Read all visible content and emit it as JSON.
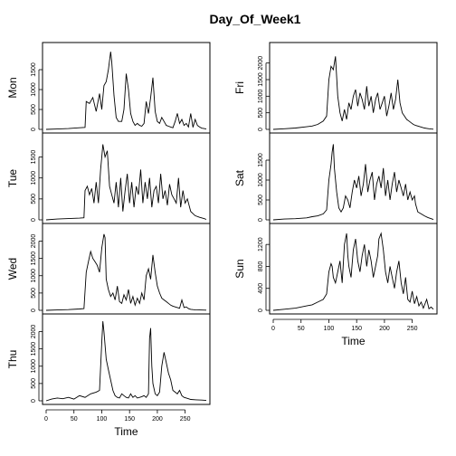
{
  "title": "Day_Of_Week1",
  "chart_data": {
    "type": "line",
    "title": "Day_Of_Week1",
    "xlabel": "Time",
    "grid": false,
    "panels": [
      {
        "name": "Mon",
        "column": 0,
        "row": 0,
        "ylim": [
          0,
          2000
        ],
        "yticks": [
          0,
          500,
          1000,
          1500
        ],
        "xlim": [
          0,
          288
        ],
        "x": [
          0,
          20,
          40,
          60,
          70,
          72,
          78,
          84,
          90,
          96,
          100,
          104,
          108,
          112,
          116,
          118,
          122,
          126,
          130,
          136,
          140,
          144,
          148,
          152,
          156,
          160,
          164,
          168,
          172,
          176,
          180,
          184,
          188,
          192,
          196,
          200,
          204,
          208,
          212,
          216,
          220,
          224,
          228,
          232,
          236,
          240,
          244,
          248,
          252,
          256,
          260,
          264,
          268,
          272,
          276,
          280,
          284,
          288
        ],
        "y": [
          0,
          10,
          20,
          40,
          50,
          700,
          650,
          800,
          450,
          900,
          500,
          1100,
          1200,
          1500,
          1950,
          1700,
          850,
          300,
          200,
          200,
          500,
          1400,
          1000,
          400,
          200,
          100,
          150,
          100,
          80,
          150,
          700,
          400,
          800,
          1300,
          450,
          200,
          150,
          300,
          200,
          100,
          80,
          60,
          40,
          200,
          400,
          150,
          250,
          100,
          150,
          60,
          400,
          50,
          250,
          100,
          60,
          30,
          20,
          10
        ]
      },
      {
        "name": "Tue",
        "column": 0,
        "row": 1,
        "ylim": [
          0,
          1900
        ],
        "yticks": [
          0,
          500,
          1000,
          1500
        ],
        "xlim": [
          0,
          288
        ],
        "x": [
          0,
          20,
          40,
          60,
          68,
          70,
          74,
          78,
          82,
          86,
          90,
          94,
          98,
          100,
          102,
          106,
          110,
          114,
          118,
          122,
          126,
          130,
          134,
          138,
          142,
          146,
          150,
          154,
          158,
          162,
          166,
          170,
          174,
          178,
          182,
          186,
          190,
          194,
          198,
          202,
          206,
          210,
          214,
          218,
          222,
          226,
          230,
          234,
          238,
          242,
          246,
          250,
          254,
          260,
          268,
          276,
          284,
          288
        ],
        "y": [
          0,
          20,
          30,
          40,
          50,
          700,
          800,
          600,
          750,
          400,
          900,
          400,
          1200,
          1500,
          1800,
          1500,
          1650,
          800,
          600,
          400,
          900,
          300,
          1000,
          200,
          700,
          1100,
          400,
          900,
          300,
          800,
          600,
          1200,
          400,
          900,
          500,
          1000,
          300,
          700,
          800,
          400,
          1100,
          500,
          700,
          350,
          850,
          600,
          500,
          400,
          1000,
          300,
          700,
          400,
          500,
          200,
          100,
          60,
          30,
          10
        ]
      },
      {
        "name": "Wed",
        "column": 0,
        "row": 2,
        "ylim": [
          0,
          2300
        ],
        "yticks": [
          0,
          500,
          1000,
          1500,
          2000
        ],
        "xlim": [
          0,
          288
        ],
        "x": [
          0,
          20,
          40,
          60,
          68,
          72,
          76,
          80,
          84,
          88,
          92,
          96,
          100,
          104,
          106,
          108,
          112,
          116,
          120,
          124,
          128,
          132,
          136,
          140,
          144,
          148,
          152,
          156,
          160,
          164,
          168,
          172,
          176,
          180,
          184,
          188,
          192,
          196,
          200,
          204,
          208,
          212,
          216,
          220,
          224,
          228,
          232,
          236,
          240,
          244,
          248,
          252,
          256,
          260,
          264,
          268,
          276,
          288
        ],
        "y": [
          0,
          10,
          20,
          40,
          50,
          1100,
          1400,
          1700,
          1500,
          1400,
          1300,
          1100,
          1800,
          2200,
          2100,
          900,
          600,
          400,
          500,
          300,
          700,
          250,
          200,
          450,
          300,
          600,
          200,
          400,
          150,
          350,
          200,
          500,
          300,
          1000,
          1200,
          900,
          1600,
          1100,
          700,
          500,
          350,
          300,
          250,
          200,
          150,
          120,
          100,
          80,
          60,
          300,
          80,
          100,
          50,
          30,
          20,
          15,
          10,
          5
        ]
      },
      {
        "name": "Thu",
        "column": 0,
        "row": 3,
        "ylim": [
          0,
          2300
        ],
        "yticks": [
          0,
          500,
          1000,
          1500,
          2000
        ],
        "xlim": [
          0,
          288
        ],
        "x": [
          0,
          10,
          20,
          30,
          40,
          50,
          60,
          70,
          80,
          90,
          96,
          100,
          102,
          104,
          108,
          112,
          116,
          120,
          124,
          128,
          132,
          136,
          140,
          144,
          148,
          152,
          156,
          160,
          164,
          168,
          172,
          176,
          180,
          184,
          186,
          188,
          190,
          192,
          196,
          200,
          204,
          208,
          212,
          216,
          220,
          224,
          228,
          232,
          236,
          240,
          244,
          248,
          252,
          256,
          260,
          270,
          280,
          288
        ],
        "y": [
          0,
          50,
          80,
          60,
          100,
          50,
          150,
          100,
          200,
          250,
          300,
          1700,
          2300,
          2000,
          1200,
          900,
          600,
          300,
          150,
          100,
          80,
          200,
          150,
          100,
          80,
          200,
          100,
          150,
          80,
          100,
          120,
          150,
          100,
          200,
          1800,
          2100,
          1000,
          500,
          200,
          150,
          250,
          1000,
          1400,
          1100,
          800,
          600,
          300,
          250,
          200,
          300,
          150,
          100,
          80,
          60,
          40,
          30,
          20,
          10
        ]
      },
      {
        "name": "Fri",
        "column": 1,
        "row": 0,
        "ylim": [
          0,
          2400
        ],
        "yticks": [
          0,
          500,
          1000,
          1500,
          2000
        ],
        "xlim": [
          0,
          288
        ],
        "x": [
          0,
          20,
          40,
          60,
          70,
          80,
          90,
          96,
          100,
          104,
          108,
          112,
          116,
          120,
          124,
          128,
          132,
          136,
          140,
          144,
          148,
          152,
          156,
          160,
          164,
          168,
          172,
          176,
          180,
          184,
          188,
          192,
          196,
          200,
          204,
          208,
          212,
          216,
          220,
          224,
          228,
          232,
          236,
          240,
          244,
          248,
          252,
          256,
          260,
          264,
          268,
          272,
          276,
          280,
          284,
          288
        ],
        "y": [
          0,
          20,
          40,
          80,
          100,
          150,
          250,
          400,
          1500,
          1900,
          1800,
          2200,
          1000,
          500,
          250,
          600,
          300,
          800,
          600,
          1000,
          1200,
          700,
          1100,
          900,
          600,
          1300,
          700,
          1000,
          500,
          900,
          1100,
          600,
          800,
          1000,
          400,
          700,
          1100,
          600,
          900,
          1500,
          800,
          500,
          400,
          300,
          250,
          200,
          150,
          120,
          100,
          80,
          60,
          40,
          30,
          20,
          10,
          5
        ]
      },
      {
        "name": "Sat",
        "column": 1,
        "row": 1,
        "ylim": [
          0,
          2000
        ],
        "yticks": [
          0,
          500,
          1000,
          1500
        ],
        "xlim": [
          0,
          288
        ],
        "x": [
          0,
          20,
          40,
          60,
          70,
          80,
          90,
          96,
          100,
          104,
          106,
          108,
          110,
          114,
          118,
          122,
          126,
          130,
          134,
          138,
          142,
          146,
          150,
          154,
          158,
          162,
          166,
          170,
          174,
          178,
          182,
          186,
          190,
          194,
          198,
          202,
          206,
          210,
          214,
          218,
          222,
          226,
          230,
          234,
          238,
          242,
          246,
          250,
          254,
          256,
          260,
          266,
          272,
          278,
          284,
          288
        ],
        "y": [
          0,
          20,
          30,
          50,
          80,
          100,
          150,
          250,
          1000,
          1400,
          1700,
          1900,
          1300,
          700,
          300,
          200,
          300,
          600,
          500,
          300,
          700,
          1000,
          800,
          1100,
          600,
          900,
          1400,
          700,
          1000,
          1200,
          500,
          900,
          1100,
          800,
          1300,
          600,
          1000,
          500,
          900,
          1200,
          700,
          1000,
          800,
          600,
          900,
          500,
          700,
          500,
          600,
          400,
          200,
          150,
          100,
          60,
          30,
          10
        ]
      },
      {
        "name": "Sun",
        "column": 1,
        "row": 2,
        "ylim": [
          0,
          1450
        ],
        "yticks": [
          0,
          400,
          800,
          1200
        ],
        "xlim": [
          0,
          288
        ],
        "x": [
          0,
          20,
          40,
          60,
          70,
          80,
          90,
          96,
          100,
          104,
          106,
          108,
          112,
          116,
          120,
          124,
          128,
          132,
          134,
          136,
          140,
          144,
          148,
          152,
          156,
          160,
          164,
          168,
          172,
          176,
          180,
          184,
          188,
          190,
          194,
          198,
          202,
          206,
          210,
          214,
          218,
          222,
          226,
          230,
          234,
          238,
          242,
          246,
          250,
          254,
          258,
          262,
          266,
          270,
          276,
          280,
          284,
          288
        ],
        "y": [
          0,
          20,
          40,
          80,
          100,
          150,
          200,
          300,
          700,
          850,
          800,
          600,
          500,
          700,
          900,
          500,
          1200,
          1400,
          1000,
          800,
          600,
          1100,
          1300,
          900,
          700,
          1000,
          1200,
          800,
          1100,
          900,
          600,
          800,
          1000,
          1300,
          1400,
          1100,
          700,
          500,
          800,
          600,
          400,
          700,
          900,
          500,
          300,
          600,
          200,
          150,
          350,
          120,
          250,
          80,
          150,
          40,
          200,
          30,
          60,
          20
        ]
      }
    ]
  }
}
